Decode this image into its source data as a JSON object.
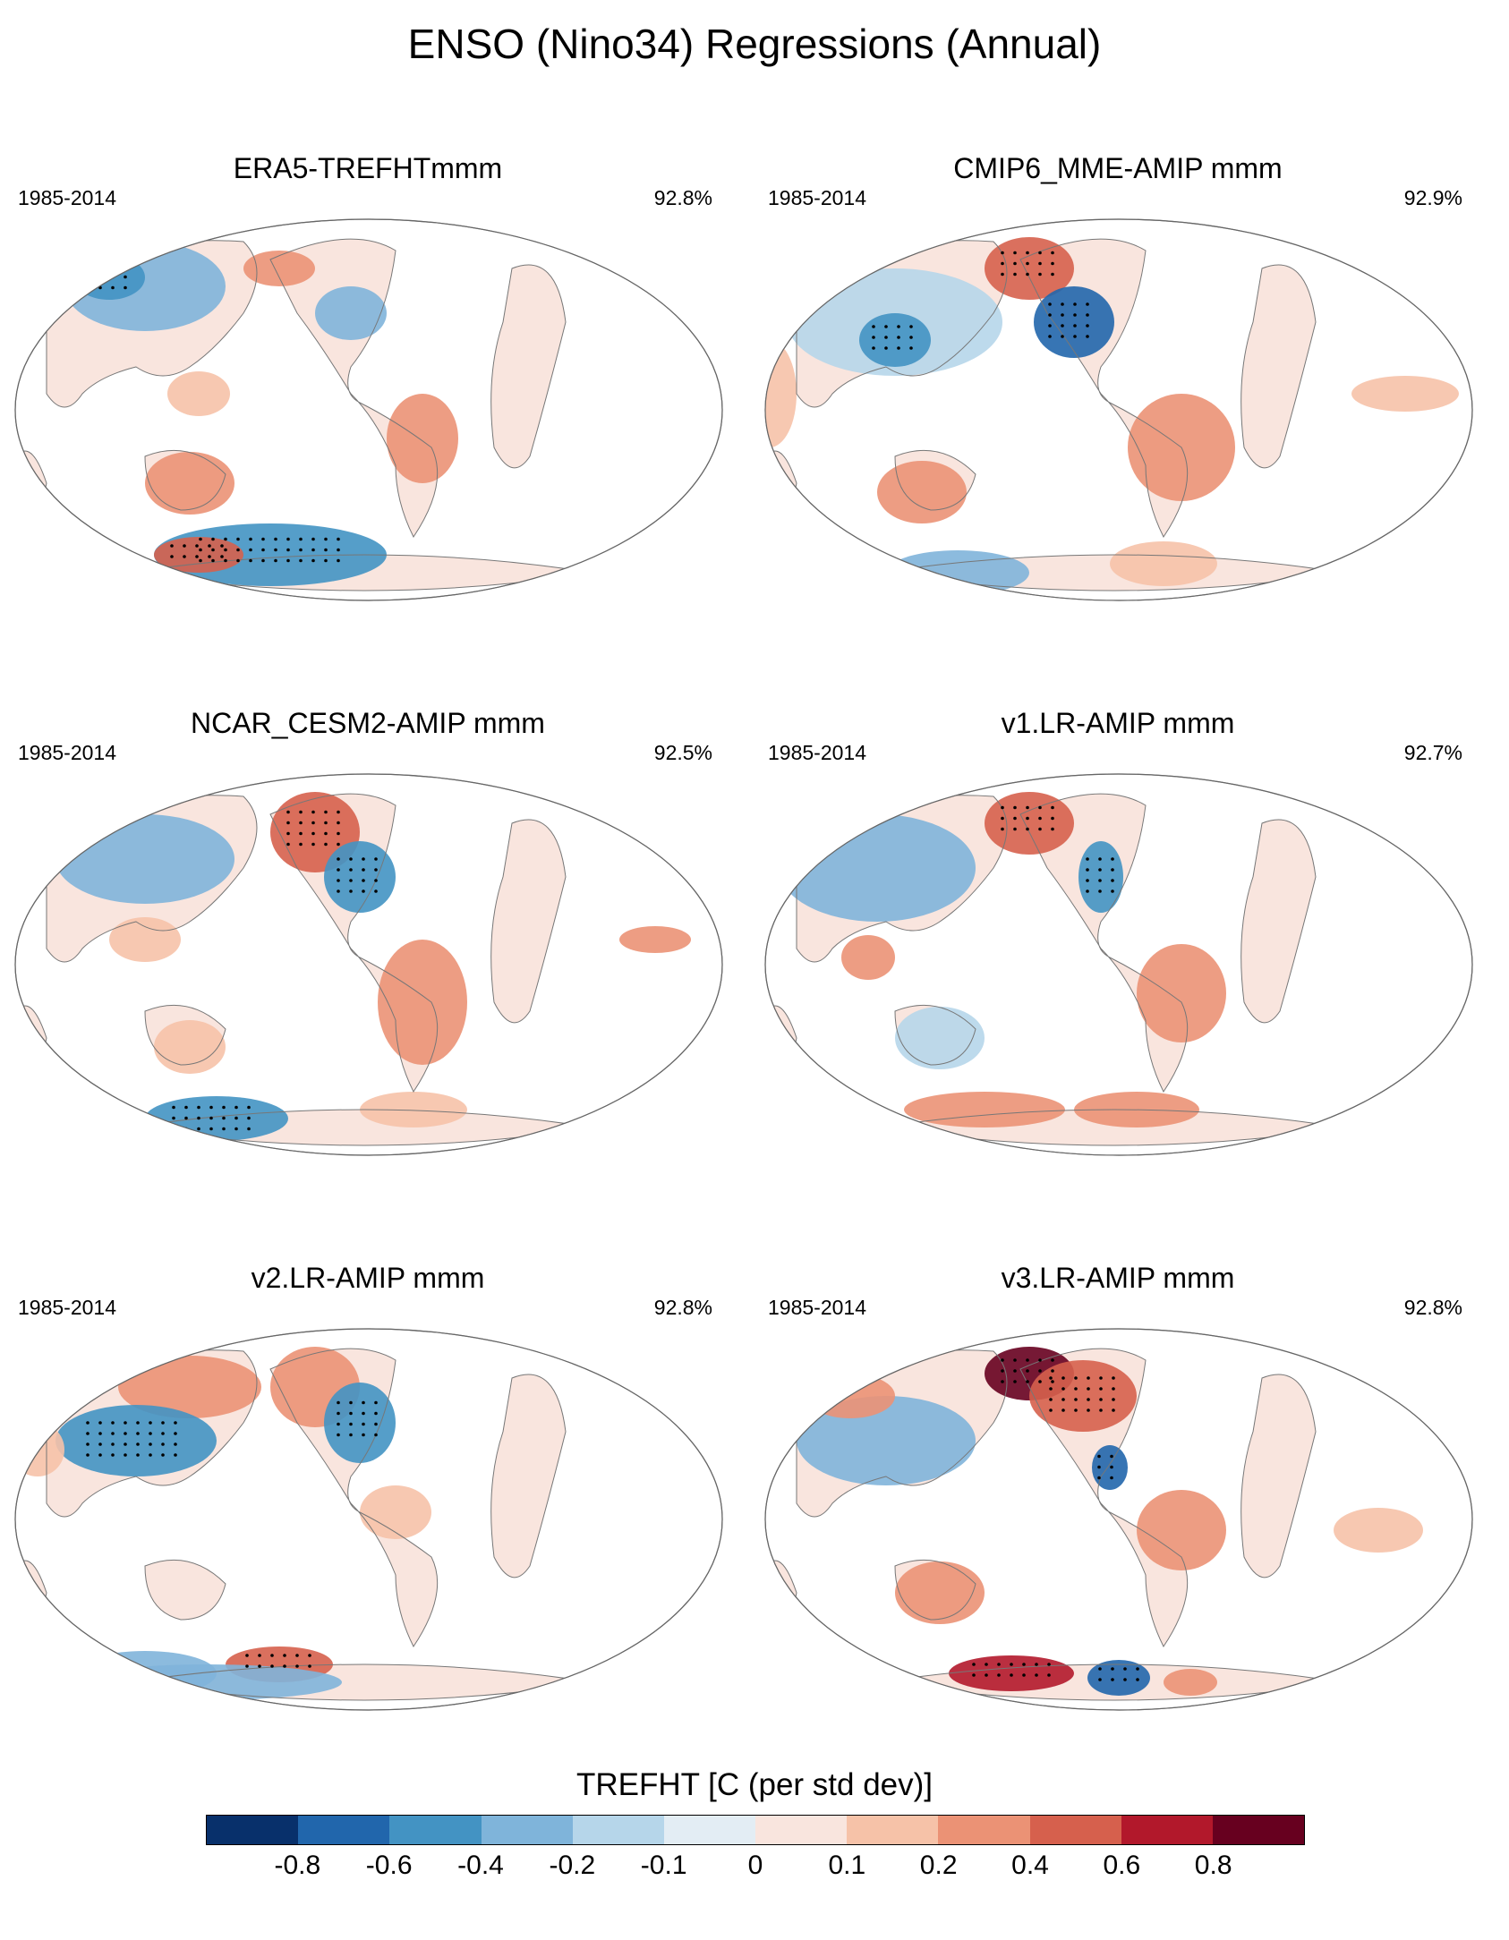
{
  "title": "ENSO (Nino34) Regressions (Annual)",
  "panels": [
    {
      "title": "ERA5-TREFHTmmm",
      "period": "1985-2014",
      "pct": "92.8%"
    },
    {
      "title": "CMIP6_MME-AMIP  mmm",
      "period": "1985-2014",
      "pct": "92.9%"
    },
    {
      "title": "NCAR_CESM2-AMIP  mmm",
      "period": "1985-2014",
      "pct": "92.5%"
    },
    {
      "title": "v1.LR-AMIP  mmm",
      "period": "1985-2014",
      "pct": "92.7%"
    },
    {
      "title": "v2.LR-AMIP  mmm",
      "period": "1985-2014",
      "pct": "92.8%"
    },
    {
      "title": "v3.LR-AMIP  mmm",
      "period": "1985-2014",
      "pct": "92.8%"
    }
  ],
  "colorbar": {
    "label": "TREFHT [C (per std dev)]",
    "ticks": [
      "-0.8",
      "-0.6",
      "-0.4",
      "-0.2",
      "-0.1",
      "0",
      "0.1",
      "0.2",
      "0.4",
      "0.6",
      "0.8"
    ],
    "colors": [
      "#08306b",
      "#2166ac",
      "#4393c3",
      "#7fb4da",
      "#b6d6ea",
      "#e3edf4",
      "#f9e5de",
      "#f6c2a8",
      "#eb9275",
      "#d6604d",
      "#b2182b",
      "#67001f"
    ]
  }
}
